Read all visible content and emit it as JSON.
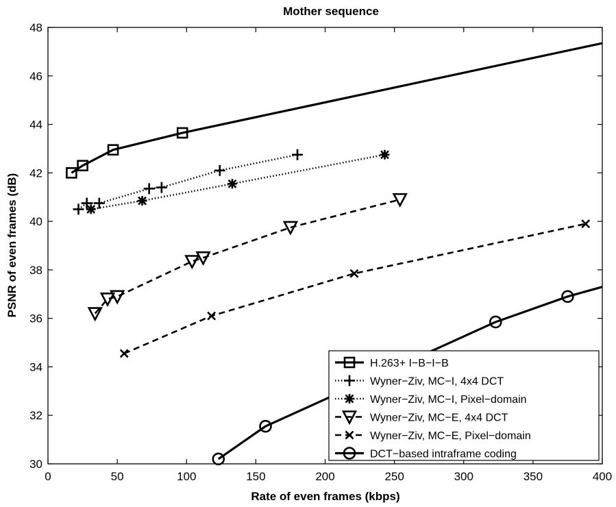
{
  "chart_data": {
    "type": "line",
    "title": "Mother sequence",
    "xlabel": "Rate of even frames (kbps)",
    "ylabel": "PSNR of even frames (dB)",
    "xlim": [
      0,
      400
    ],
    "ylim": [
      30,
      48
    ],
    "xticks": [
      "0",
      "50",
      "100",
      "150",
      "200",
      "250",
      "300",
      "350",
      "400"
    ],
    "yticks": [
      "30",
      "32",
      "34",
      "36",
      "38",
      "40",
      "42",
      "44",
      "46",
      "48"
    ],
    "grid": false,
    "legend_position": "bottom-right",
    "series": [
      {
        "name": "H.263+ I−B−I−B",
        "marker": "square",
        "line": "solid",
        "line_x": [
          17,
          25,
          47,
          97,
          400
        ],
        "line_y": [
          42.0,
          42.3,
          42.95,
          43.65,
          47.35
        ],
        "marker_x": [
          17,
          25,
          47,
          97
        ],
        "marker_y": [
          42.0,
          42.3,
          42.95,
          43.65
        ]
      },
      {
        "name": "Wyner−Ziv, MC−I, 4x4 DCT",
        "marker": "plus",
        "line": "dotted",
        "line_x": [
          22,
          28,
          37,
          73,
          82,
          124,
          180
        ],
        "line_y": [
          40.5,
          40.75,
          40.75,
          41.35,
          41.4,
          42.1,
          42.75
        ],
        "marker_x": [
          22,
          28,
          37,
          73,
          82,
          124,
          180
        ],
        "marker_y": [
          40.5,
          40.75,
          40.75,
          41.35,
          41.4,
          42.1,
          42.75
        ]
      },
      {
        "name": "Wyner−Ziv, MC−I, Pixel−domain",
        "marker": "asterisk",
        "line": "dotted",
        "line_x": [
          31,
          68,
          133,
          243
        ],
        "line_y": [
          40.5,
          40.85,
          41.55,
          42.75
        ],
        "marker_x": [
          31,
          68,
          133,
          243
        ],
        "marker_y": [
          40.5,
          40.85,
          41.55,
          42.75
        ]
      },
      {
        "name": "Wyner−Ziv, MC−E, 4x4 DCT",
        "marker": "triangle-down",
        "line": "dashed",
        "line_x": [
          34,
          43,
          50,
          104,
          112,
          175,
          254
        ],
        "line_y": [
          36.2,
          36.8,
          36.9,
          38.35,
          38.5,
          39.75,
          40.9
        ],
        "marker_x": [
          34,
          43,
          50,
          104,
          112,
          175,
          254
        ],
        "marker_y": [
          36.2,
          36.8,
          36.9,
          38.35,
          38.5,
          39.75,
          40.9
        ]
      },
      {
        "name": "Wyner−Ziv, MC−E, Pixel−domain",
        "marker": "x",
        "line": "dashed",
        "line_x": [
          55,
          118,
          221,
          388
        ],
        "line_y": [
          34.55,
          36.1,
          37.85,
          39.9
        ],
        "marker_x": [
          55,
          118,
          221,
          388
        ],
        "marker_y": [
          34.55,
          36.1,
          37.85,
          39.9
        ]
      },
      {
        "name": "DCT−based intraframe coding",
        "marker": "circle",
        "line": "solid",
        "line_x": [
          123,
          157,
          323,
          375,
          400
        ],
        "line_y": [
          30.2,
          31.55,
          35.85,
          36.9,
          37.3
        ],
        "marker_x": [
          123,
          157,
          323,
          375
        ],
        "marker_y": [
          30.2,
          31.55,
          35.85,
          36.9
        ]
      }
    ]
  }
}
